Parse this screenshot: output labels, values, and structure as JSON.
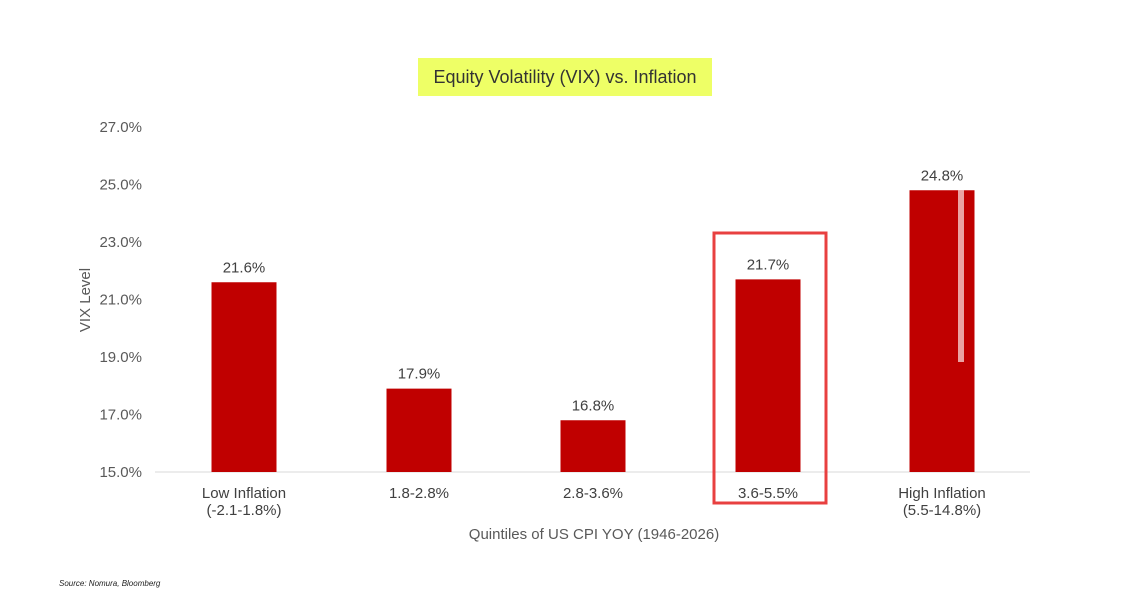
{
  "chart_data": {
    "type": "bar",
    "title": "Equity Volatility (VIX) vs. Inflation",
    "xlabel": "Quintiles of US CPI YOY (1946-2026)",
    "ylabel": "VIX Level",
    "ylim": [
      15.0,
      27.0
    ],
    "yticks": [
      "15.0%",
      "17.0%",
      "19.0%",
      "21.0%",
      "23.0%",
      "25.0%",
      "27.0%"
    ],
    "ytick_values": [
      15,
      17,
      19,
      21,
      23,
      25,
      27
    ],
    "categories": [
      [
        "Low Inflation",
        "(-2.1-1.8%)"
      ],
      [
        "1.8-2.8%"
      ],
      [
        "2.8-3.6%"
      ],
      [
        "3.6-5.5%"
      ],
      [
        "High Inflation",
        "(5.5-14.8%)"
      ]
    ],
    "values": [
      21.6,
      17.9,
      16.8,
      21.7,
      24.8
    ],
    "data_labels": [
      "21.6%",
      "17.9%",
      "16.8%",
      "21.7%",
      "24.8%"
    ],
    "highlighted_category_index": 3,
    "grid": false,
    "legend": "none",
    "source": "Source: Nomura, Bloomberg"
  },
  "colors": {
    "bar": "#c00000",
    "title_highlight": "#eeff66",
    "highlight_box": "#e84040",
    "axis": "#d9d9d9"
  }
}
